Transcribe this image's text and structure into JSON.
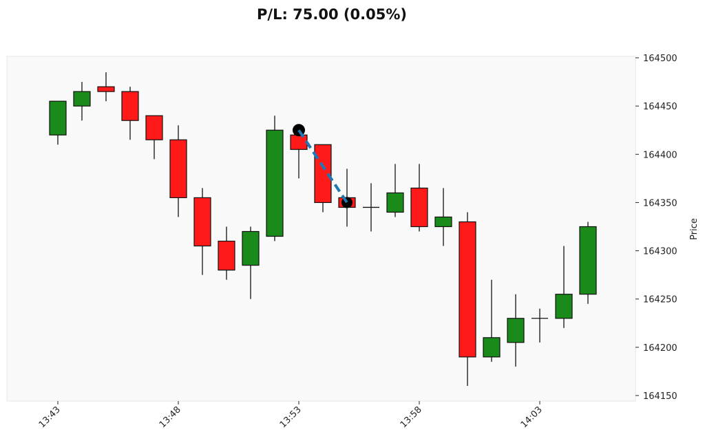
{
  "chart_data": {
    "type": "candlestick",
    "title": "P/L: 75.00 (0.05%)",
    "xlabel": "",
    "ylabel": "Price",
    "ylim": [
      164150,
      164500
    ],
    "yticks": [
      "164150",
      "164200",
      "164250",
      "164300",
      "164350",
      "164400",
      "164450",
      "164500"
    ],
    "xticks": [
      "13:43",
      "13:48",
      "13:53",
      "13:58",
      "14:03"
    ],
    "colors": {
      "up": "#1a8a1a",
      "down": "#ff1a1a",
      "trade_line": "#1f77b4",
      "marker": "#000000",
      "plot_bg": "#f9f9f9"
    },
    "candles": [
      {
        "t": "13:43",
        "o": 164420,
        "h": 164455,
        "l": 164410,
        "c": 164455
      },
      {
        "t": "13:44",
        "o": 164450,
        "h": 164475,
        "l": 164435,
        "c": 164465
      },
      {
        "t": "13:45",
        "o": 164470,
        "h": 164485,
        "l": 164455,
        "c": 164465
      },
      {
        "t": "13:46",
        "o": 164465,
        "h": 164470,
        "l": 164415,
        "c": 164435
      },
      {
        "t": "13:47",
        "o": 164440,
        "h": 164440,
        "l": 164395,
        "c": 164415
      },
      {
        "t": "13:48",
        "o": 164415,
        "h": 164430,
        "l": 164335,
        "c": 164355
      },
      {
        "t": "13:49",
        "o": 164355,
        "h": 164365,
        "l": 164275,
        "c": 164305
      },
      {
        "t": "13:50",
        "o": 164310,
        "h": 164325,
        "l": 164270,
        "c": 164280
      },
      {
        "t": "13:51",
        "o": 164285,
        "h": 164325,
        "l": 164250,
        "c": 164320
      },
      {
        "t": "13:52",
        "o": 164315,
        "h": 164440,
        "l": 164310,
        "c": 164425
      },
      {
        "t": "13:53",
        "o": 164420,
        "h": 164420,
        "l": 164375,
        "c": 164405
      },
      {
        "t": "13:54",
        "o": 164410,
        "h": 164410,
        "l": 164340,
        "c": 164350
      },
      {
        "t": "13:55",
        "o": 164355,
        "h": 164385,
        "l": 164325,
        "c": 164345
      },
      {
        "t": "13:56",
        "o": 164345,
        "h": 164370,
        "l": 164320,
        "c": 164345
      },
      {
        "t": "13:57",
        "o": 164340,
        "h": 164390,
        "l": 164335,
        "c": 164360
      },
      {
        "t": "13:58",
        "o": 164365,
        "h": 164390,
        "l": 164320,
        "c": 164325
      },
      {
        "t": "13:59",
        "o": 164325,
        "h": 164365,
        "l": 164305,
        "c": 164335
      },
      {
        "t": "14:00",
        "o": 164330,
        "h": 164340,
        "l": 164160,
        "c": 164190
      },
      {
        "t": "14:01",
        "o": 164190,
        "h": 164270,
        "l": 164185,
        "c": 164210
      },
      {
        "t": "14:02",
        "o": 164205,
        "h": 164255,
        "l": 164180,
        "c": 164230
      },
      {
        "t": "14:03",
        "o": 164230,
        "h": 164240,
        "l": 164205,
        "c": 164230
      },
      {
        "t": "14:04",
        "o": 164230,
        "h": 164305,
        "l": 164220,
        "c": 164255
      },
      {
        "t": "14:05",
        "o": 164255,
        "h": 164330,
        "l": 164245,
        "c": 164325
      }
    ],
    "trade": {
      "entry": {
        "t": "13:53",
        "price": 164425
      },
      "exit": {
        "t": "13:55",
        "price": 164350
      },
      "pl": 75.0,
      "pl_pct": 0.05
    }
  }
}
